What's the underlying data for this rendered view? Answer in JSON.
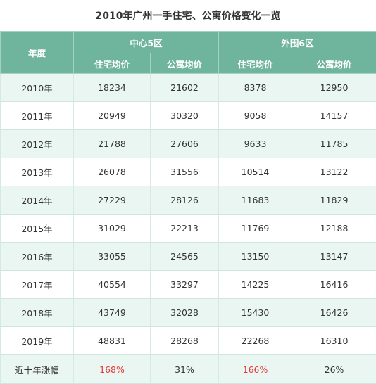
{
  "title": "2010年广州一手住宅、公寓价格变化一览",
  "header": {
    "year": "年度",
    "group1": "中心5区",
    "group2": "外围6区",
    "sub1": "住宅均价",
    "sub2": "公寓均价",
    "sub3": "住宅均价",
    "sub4": "公寓均价"
  },
  "rows": [
    {
      "year": "2010年",
      "c1": "18234",
      "c2": "21602",
      "c3": "8378",
      "c4": "12950"
    },
    {
      "year": "2011年",
      "c1": "20949",
      "c2": "30320",
      "c3": "9058",
      "c4": "14157"
    },
    {
      "year": "2012年",
      "c1": "21788",
      "c2": "27606",
      "c3": "9633",
      "c4": "11785"
    },
    {
      "year": "2013年",
      "c1": "26078",
      "c2": "31556",
      "c3": "10514",
      "c4": "13122"
    },
    {
      "year": "2014年",
      "c1": "27229",
      "c2": "28126",
      "c3": "11683",
      "c4": "11829"
    },
    {
      "year": "2015年",
      "c1": "31029",
      "c2": "22213",
      "c3": "11769",
      "c4": "12188"
    },
    {
      "year": "2016年",
      "c1": "33055",
      "c2": "24565",
      "c3": "13150",
      "c4": "13147"
    },
    {
      "year": "2017年",
      "c1": "40554",
      "c2": "33297",
      "c3": "14225",
      "c4": "16416"
    },
    {
      "year": "2018年",
      "c1": "43749",
      "c2": "32028",
      "c3": "15430",
      "c4": "16426"
    },
    {
      "year": "2019年",
      "c1": "48831",
      "c2": "28268",
      "c3": "22268",
      "c4": "16310"
    }
  ],
  "footer": {
    "label": "近十年涨幅",
    "c1": "168%",
    "c2": "31%",
    "c3": "166%",
    "c4": "26%"
  },
  "colors": {
    "header_bg": "#6fb49c",
    "stripe": "#eaf6f1",
    "highlight": "#e53a3a"
  }
}
